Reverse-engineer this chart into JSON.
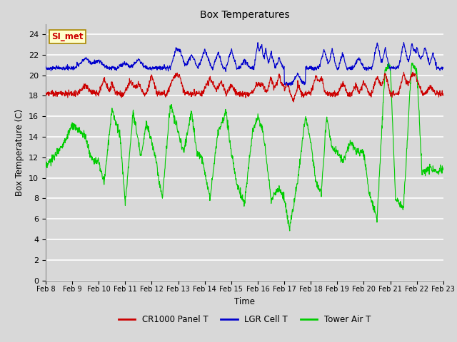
{
  "title": "Box Temperatures",
  "xlabel": "Time",
  "ylabel": "Box Temperature (C)",
  "ylim": [
    0,
    25
  ],
  "yticks": [
    0,
    2,
    4,
    6,
    8,
    10,
    12,
    14,
    16,
    18,
    20,
    22,
    24
  ],
  "xtick_labels": [
    "Feb 8",
    "Feb 9",
    "Feb 10",
    "Feb 11",
    "Feb 12",
    "Feb 13",
    "Feb 14",
    "Feb 15",
    "Feb 16",
    "Feb 17",
    "Feb 18",
    "Feb 19",
    "Feb 20",
    "Feb 21",
    "Feb 22",
    "Feb 23"
  ],
  "bg_color": "#d8d8d8",
  "plot_bg_color": "#d8d8d8",
  "grid_color": "#b8b8b8",
  "legend_entries": [
    "CR1000 Panel T",
    "LGR Cell T",
    "Tower Air T"
  ],
  "legend_colors": [
    "#cc0000",
    "#0000cc",
    "#00cc00"
  ],
  "annotation_text": "SI_met",
  "annotation_color": "#cc0000",
  "annotation_bg": "#ffffcc",
  "annotation_border": "#aa8800"
}
